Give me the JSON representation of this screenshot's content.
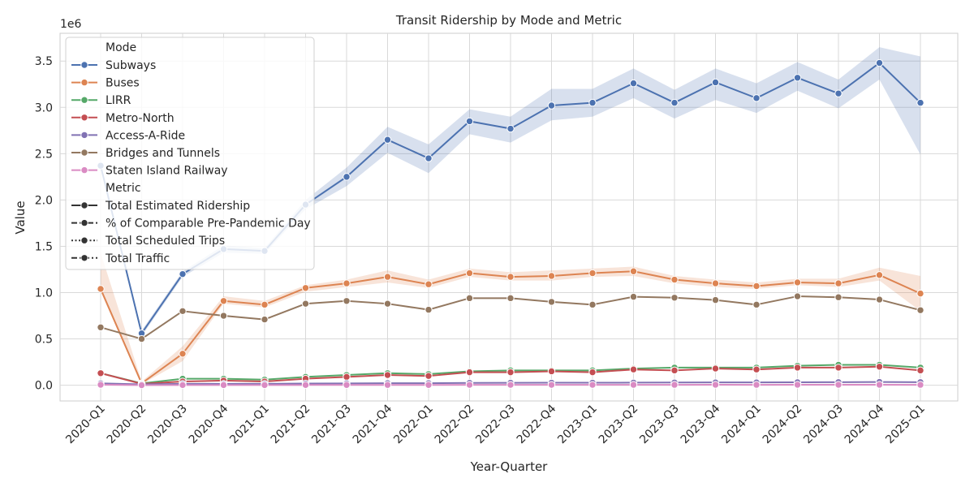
{
  "chart_data": {
    "type": "line",
    "title": "Transit Ridership by Mode and Metric",
    "xlabel": "Year-Quarter",
    "ylabel": "Value",
    "y_offset_label": "1e6",
    "ylim": [
      -170000,
      3800000
    ],
    "yticks": [
      "0.0",
      "0.5",
      "1.0",
      "1.5",
      "2.0",
      "2.5",
      "3.0",
      "3.5"
    ],
    "ytick_values": [
      0,
      500000,
      1000000,
      1500000,
      2000000,
      2500000,
      3000000,
      3500000
    ],
    "grid": true,
    "legend_position": "top-left",
    "categories": [
      "2020-Q1",
      "2020-Q2",
      "2020-Q3",
      "2020-Q4",
      "2021-Q1",
      "2021-Q2",
      "2021-Q3",
      "2021-Q4",
      "2022-Q1",
      "2022-Q2",
      "2022-Q3",
      "2022-Q4",
      "2023-Q1",
      "2023-Q2",
      "2023-Q3",
      "2023-Q4",
      "2024-Q1",
      "2024-Q2",
      "2024-Q3",
      "2024-Q4",
      "2025-Q1"
    ],
    "legend": {
      "mode_title": "Mode",
      "metric_title": "Metric",
      "modes": [
        {
          "name": "Subways",
          "color": "#4c72b0"
        },
        {
          "name": "Buses",
          "color": "#dd8452"
        },
        {
          "name": "LIRR",
          "color": "#55a868"
        },
        {
          "name": "Metro-North",
          "color": "#c44e52"
        },
        {
          "name": "Access-A-Ride",
          "color": "#8172b3"
        },
        {
          "name": "Bridges and Tunnels",
          "color": "#937860"
        },
        {
          "name": "Staten Island Railway",
          "color": "#da8bc3"
        }
      ],
      "metrics": [
        {
          "name": "Total Estimated Ridership",
          "dash": "solid"
        },
        {
          "name": "% of Comparable Pre-Pandemic Day",
          "dash": "dashed"
        },
        {
          "name": "Total Scheduled Trips",
          "dash": "dotted"
        },
        {
          "name": "Total Traffic",
          "dash": "dashdot"
        }
      ]
    },
    "series": [
      {
        "mode": "Subways",
        "color": "#4c72b0",
        "values": [
          2370000,
          560000,
          1200000,
          1470000,
          1450000,
          1950000,
          2250000,
          2650000,
          2450000,
          2850000,
          2770000,
          3020000,
          3050000,
          3260000,
          3050000,
          3270000,
          3100000,
          3320000,
          3150000,
          3480000,
          3050000
        ],
        "ci_low": [
          2350000,
          530000,
          1170000,
          1430000,
          1420000,
          1900000,
          2150000,
          2510000,
          2290000,
          2710000,
          2620000,
          2860000,
          2900000,
          3100000,
          2880000,
          3080000,
          2940000,
          3180000,
          2990000,
          3300000,
          2490000
        ],
        "ci_high": [
          2390000,
          590000,
          1230000,
          1510000,
          1480000,
          2000000,
          2350000,
          2790000,
          2600000,
          2980000,
          2900000,
          3200000,
          3200000,
          3420000,
          3190000,
          3420000,
          3260000,
          3490000,
          3300000,
          3650000,
          3550000
        ]
      },
      {
        "mode": "Buses",
        "color": "#dd8452",
        "values": [
          1040000,
          20000,
          340000,
          910000,
          870000,
          1050000,
          1100000,
          1170000,
          1090000,
          1210000,
          1170000,
          1180000,
          1210000,
          1230000,
          1140000,
          1100000,
          1070000,
          1110000,
          1100000,
          1190000,
          990000
        ],
        "ci_low": [
          1010000,
          10000,
          260000,
          880000,
          840000,
          1010000,
          1060000,
          1110000,
          1050000,
          1170000,
          1130000,
          1130000,
          1170000,
          1180000,
          1100000,
          1060000,
          1040000,
          1080000,
          1060000,
          1130000,
          800000
        ],
        "ci_high": [
          1430000,
          40000,
          420000,
          960000,
          910000,
          1080000,
          1140000,
          1240000,
          1140000,
          1260000,
          1220000,
          1240000,
          1260000,
          1280000,
          1180000,
          1140000,
          1110000,
          1150000,
          1150000,
          1270000,
          1180000
        ]
      },
      {
        "mode": "LIRR",
        "color": "#55a868",
        "values": [
          130000,
          20000,
          70000,
          70000,
          60000,
          90000,
          110000,
          130000,
          120000,
          150000,
          160000,
          160000,
          160000,
          180000,
          190000,
          190000,
          190000,
          210000,
          220000,
          220000,
          190000
        ]
      },
      {
        "mode": "Metro-North",
        "color": "#c44e52",
        "values": [
          130000,
          15000,
          40000,
          50000,
          40000,
          70000,
          90000,
          110000,
          100000,
          140000,
          140000,
          150000,
          140000,
          170000,
          160000,
          180000,
          170000,
          190000,
          190000,
          200000,
          160000
        ]
      },
      {
        "mode": "Access-A-Ride",
        "color": "#8172b3",
        "values": [
          20000,
          10000,
          15000,
          15000,
          15000,
          18000,
          20000,
          22000,
          22000,
          25000,
          26000,
          27000,
          27000,
          28000,
          29000,
          30000,
          30000,
          32000,
          33000,
          35000,
          33000
        ]
      },
      {
        "mode": "Bridges and Tunnels",
        "color": "#937860",
        "values": [
          625000,
          500000,
          800000,
          750000,
          710000,
          880000,
          910000,
          880000,
          815000,
          940000,
          940000,
          900000,
          870000,
          955000,
          945000,
          920000,
          870000,
          960000,
          950000,
          925000,
          810000
        ]
      },
      {
        "mode": "Staten Island Railway",
        "color": "#da8bc3",
        "values": [
          5000,
          500,
          1500,
          2000,
          1800,
          2500,
          3000,
          3500,
          3000,
          4000,
          4000,
          4000,
          4000,
          4500,
          4500,
          5000,
          4500,
          5000,
          5000,
          5000,
          4500
        ]
      }
    ]
  }
}
